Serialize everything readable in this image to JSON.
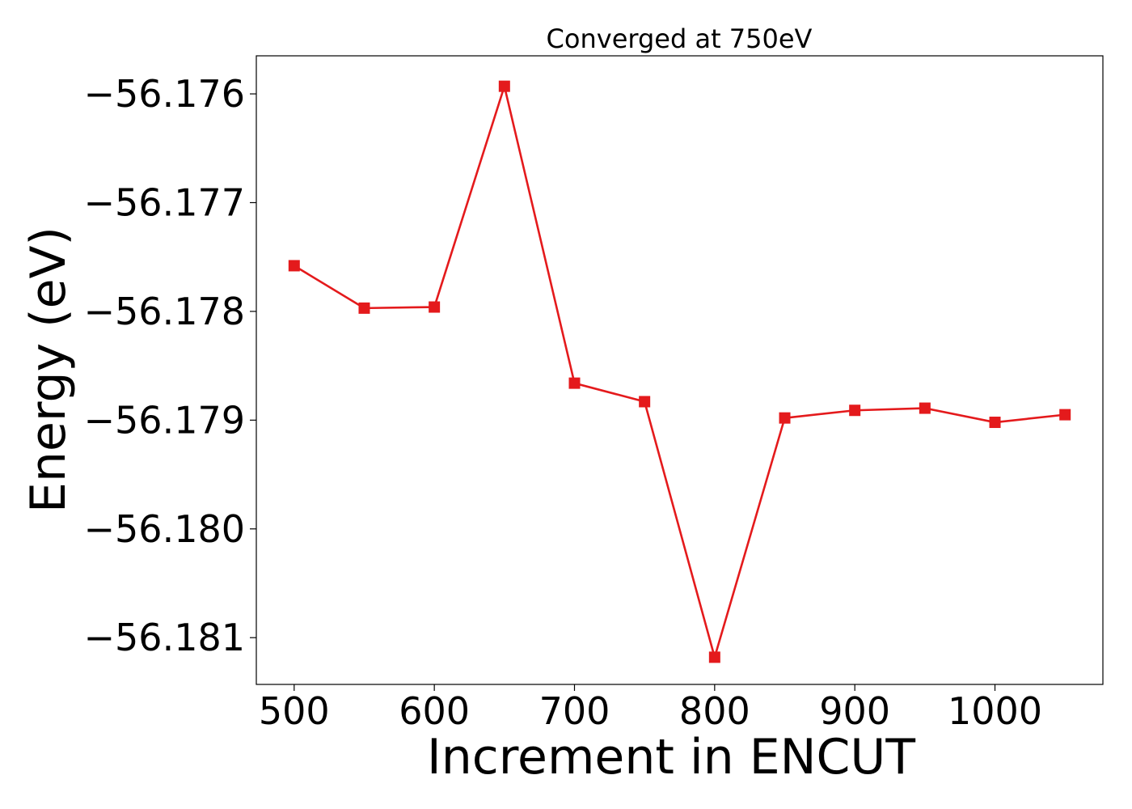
{
  "chart_data": {
    "type": "line",
    "title": "Converged at 750eV",
    "xlabel": "Increment in ENCUT",
    "ylabel": "Energy (eV)",
    "xlim": [
      473,
      1077
    ],
    "ylim": [
      -56.18143,
      -56.17565
    ],
    "xticks": [
      500,
      600,
      700,
      800,
      900,
      1000
    ],
    "xtick_labels": [
      "500",
      "600",
      "700",
      "800",
      "900",
      "1000"
    ],
    "yticks": [
      -56.176,
      -56.177,
      -56.178,
      -56.179,
      -56.18,
      -56.181
    ],
    "ytick_labels": [
      "−56.176",
      "−56.177",
      "−56.178",
      "−56.179",
      "−56.180",
      "−56.181"
    ],
    "grid": false,
    "series": [
      {
        "color": "#e41a1c",
        "marker": "square",
        "x": [
          500,
          550,
          600,
          650,
          700,
          750,
          800,
          850,
          900,
          950,
          1000,
          1050
        ],
        "y": [
          -56.17758,
          -56.17797,
          -56.17796,
          -56.17593,
          -56.17866,
          -56.17883,
          -56.18118,
          -56.17898,
          -56.17891,
          -56.17889,
          -56.17902,
          -56.17895
        ]
      }
    ]
  }
}
